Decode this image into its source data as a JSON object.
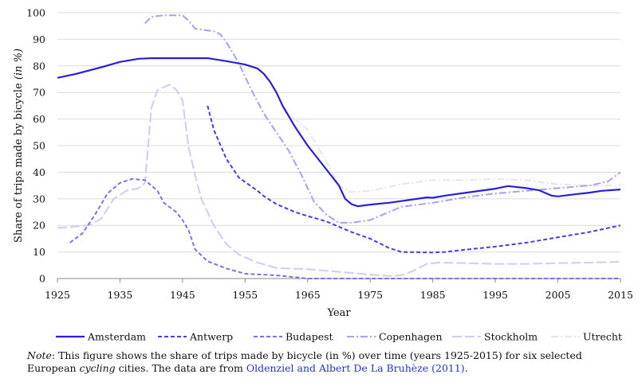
{
  "chart_data": {
    "type": "line",
    "xlabel": "Year",
    "ylabel": "Share of trips made by bicycle",
    "ylabel_unit": "(in %)",
    "xlim": [
      1925,
      2015
    ],
    "ylim": [
      0,
      100
    ],
    "xticks": [
      1925,
      1935,
      1945,
      1955,
      1965,
      1975,
      1985,
      1995,
      2005,
      2015
    ],
    "yticks": [
      0,
      10,
      20,
      30,
      40,
      50,
      60,
      70,
      80,
      90,
      100
    ],
    "grid": "horizontal",
    "legend_position": "bottom",
    "series": [
      {
        "name": "Amsterdam",
        "color": "#2b1fd6",
        "style": "solid",
        "points": [
          [
            1925,
            75.5
          ],
          [
            1928,
            77
          ],
          [
            1932,
            79.5
          ],
          [
            1935,
            81.5
          ],
          [
            1938,
            82.7
          ],
          [
            1940,
            82.9
          ],
          [
            1945,
            82.9
          ],
          [
            1949,
            82.9
          ],
          [
            1952,
            81.8
          ],
          [
            1955,
            80.5
          ],
          [
            1957,
            79
          ],
          [
            1958,
            77
          ],
          [
            1959,
            74
          ],
          [
            1960,
            70
          ],
          [
            1961,
            65
          ],
          [
            1963,
            57
          ],
          [
            1965,
            50
          ],
          [
            1967,
            44
          ],
          [
            1970,
            35
          ],
          [
            1971,
            30
          ],
          [
            1972,
            28
          ],
          [
            1973,
            27.2
          ],
          [
            1975,
            27.8
          ],
          [
            1978,
            28.5
          ],
          [
            1981,
            29.5
          ],
          [
            1984,
            30.5
          ],
          [
            1985,
            30.4
          ],
          [
            1987,
            31.2
          ],
          [
            1990,
            32.2
          ],
          [
            1995,
            33.8
          ],
          [
            1997,
            34.8
          ],
          [
            2000,
            34
          ],
          [
            2002,
            33.2
          ],
          [
            2003,
            32.2
          ],
          [
            2004,
            31.2
          ],
          [
            2005,
            30.9
          ],
          [
            2007,
            31.5
          ],
          [
            2010,
            32.3
          ],
          [
            2012,
            33
          ],
          [
            2015,
            33.5
          ]
        ]
      },
      {
        "name": "Antwerp",
        "color": "#4a3de0",
        "style": "dashed",
        "points": [
          [
            1949,
            65
          ],
          [
            1950,
            56
          ],
          [
            1952,
            45
          ],
          [
            1954,
            38
          ],
          [
            1957,
            33
          ],
          [
            1958,
            31
          ],
          [
            1960,
            28
          ],
          [
            1963,
            25
          ],
          [
            1965,
            23.5
          ],
          [
            1968,
            21.5
          ],
          [
            1970,
            19.5
          ],
          [
            1972,
            17.5
          ],
          [
            1975,
            15
          ],
          [
            1978,
            11.5
          ],
          [
            1980,
            10
          ],
          [
            1985,
            9.8
          ],
          [
            1987,
            10
          ],
          [
            1990,
            10.8
          ],
          [
            1995,
            12
          ],
          [
            2000,
            13.5
          ],
          [
            2005,
            15.5
          ],
          [
            2010,
            17.5
          ],
          [
            2015,
            20
          ]
        ]
      },
      {
        "name": "Budapest",
        "color": "#7e70e6",
        "style": "dashed",
        "points": [
          [
            1927,
            13.5
          ],
          [
            1929,
            17
          ],
          [
            1931,
            24
          ],
          [
            1933,
            32
          ],
          [
            1935,
            36
          ],
          [
            1937,
            37.5
          ],
          [
            1939,
            37
          ],
          [
            1941,
            33
          ],
          [
            1942,
            28.5
          ],
          [
            1944,
            25
          ],
          [
            1945,
            22
          ],
          [
            1946,
            18
          ],
          [
            1947,
            11
          ],
          [
            1949,
            6.5
          ],
          [
            1952,
            3.8
          ],
          [
            1955,
            1.8
          ],
          [
            1960,
            1.2
          ],
          [
            1965,
            0
          ],
          [
            2015,
            0
          ]
        ]
      },
      {
        "name": "Copenhagen",
        "color": "#aaa0ee",
        "style": "dashdot",
        "points": [
          [
            1939,
            96
          ],
          [
            1940,
            98.5
          ],
          [
            1942,
            99
          ],
          [
            1945,
            99
          ],
          [
            1946,
            97
          ],
          [
            1947,
            94
          ],
          [
            1950,
            93
          ],
          [
            1951,
            92
          ],
          [
            1952,
            89
          ],
          [
            1954,
            81
          ],
          [
            1956,
            71
          ],
          [
            1958,
            62
          ],
          [
            1960,
            55
          ],
          [
            1962,
            48
          ],
          [
            1964,
            39
          ],
          [
            1966,
            29
          ],
          [
            1968,
            24
          ],
          [
            1970,
            21
          ],
          [
            1972,
            21
          ],
          [
            1975,
            22
          ],
          [
            1978,
            25
          ],
          [
            1980,
            27
          ],
          [
            1985,
            28.5
          ],
          [
            1990,
            30.5
          ],
          [
            1995,
            32
          ],
          [
            2000,
            33
          ],
          [
            2005,
            34
          ],
          [
            2010,
            35
          ],
          [
            2013,
            36.5
          ],
          [
            2015,
            40
          ]
        ]
      },
      {
        "name": "Stockholm",
        "color": "#d0caf4",
        "style": "longdash",
        "points": [
          [
            1925,
            19
          ],
          [
            1930,
            20
          ],
          [
            1932,
            22.5
          ],
          [
            1934,
            30
          ],
          [
            1936,
            33
          ],
          [
            1938,
            34
          ],
          [
            1939,
            36
          ],
          [
            1940,
            64
          ],
          [
            1941,
            71
          ],
          [
            1943,
            73
          ],
          [
            1944,
            71
          ],
          [
            1945,
            67
          ],
          [
            1946,
            49
          ],
          [
            1947,
            39
          ],
          [
            1948,
            30
          ],
          [
            1950,
            20
          ],
          [
            1952,
            13
          ],
          [
            1954,
            9
          ],
          [
            1957,
            6
          ],
          [
            1960,
            4
          ],
          [
            1965,
            3.5
          ],
          [
            1970,
            2.5
          ],
          [
            1975,
            1.5
          ],
          [
            1978,
            1
          ],
          [
            1980,
            1.2
          ],
          [
            1982,
            3
          ],
          [
            1984,
            5.5
          ],
          [
            1986,
            6
          ],
          [
            1990,
            5.8
          ],
          [
            1995,
            5.5
          ],
          [
            2000,
            5.5
          ],
          [
            2005,
            5.8
          ],
          [
            2010,
            6
          ],
          [
            2015,
            6.3
          ]
        ]
      },
      {
        "name": "Utrecht",
        "color": "#e6e4f2",
        "style": "dashdot",
        "points": [
          [
            1961,
            64
          ],
          [
            1963,
            60
          ],
          [
            1965,
            56
          ],
          [
            1968,
            44
          ],
          [
            1970,
            35
          ],
          [
            1972,
            32.5
          ],
          [
            1975,
            33
          ],
          [
            1978,
            34.5
          ],
          [
            1980,
            35.5
          ],
          [
            1985,
            37
          ],
          [
            1990,
            37
          ],
          [
            1995,
            37.5
          ],
          [
            2000,
            37
          ],
          [
            2003,
            36
          ],
          [
            2005,
            35.5
          ],
          [
            2010,
            35
          ],
          [
            2015,
            35
          ]
        ]
      }
    ]
  },
  "note": {
    "label": "Note",
    "before_cycling": ": This figure shows the share of trips made by bicycle (in %) over time (years 1925-2015) for six selected European ",
    "cycling": "cycling",
    "after_cycling": " cities. The data are from ",
    "citation": "Oldenziel and Albert De La Bruhèze (2011)",
    "end": "."
  }
}
